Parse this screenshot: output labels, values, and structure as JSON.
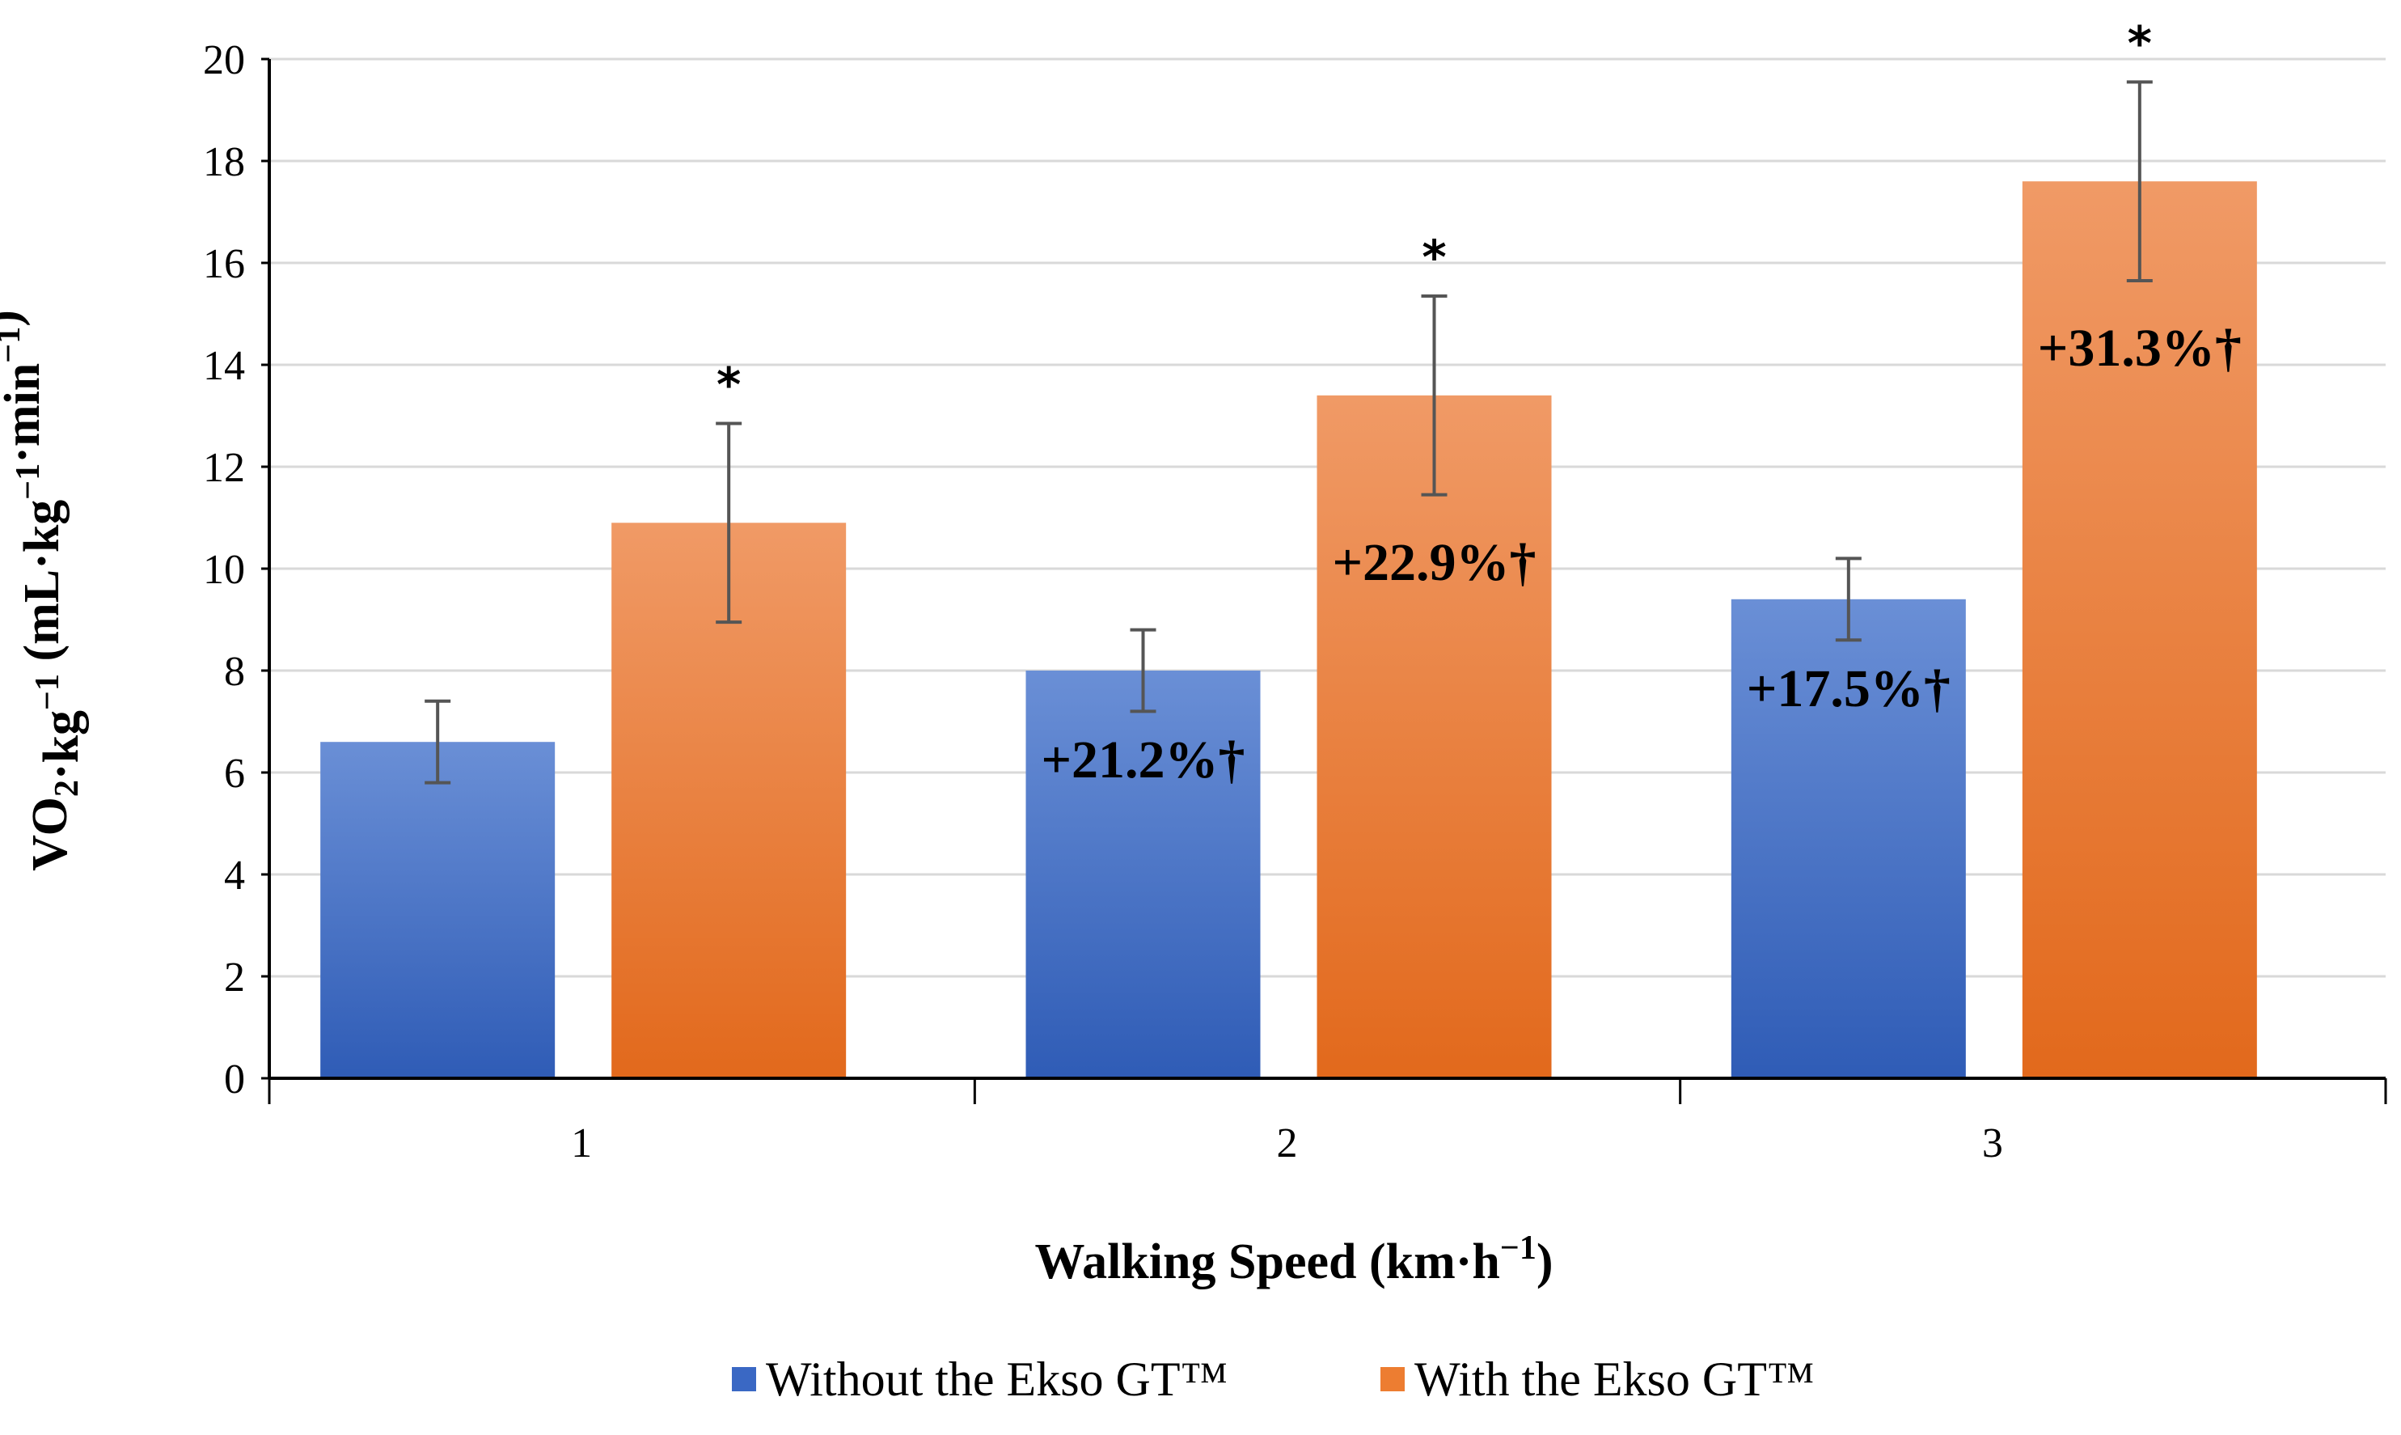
{
  "chart_data": {
    "type": "bar",
    "title": "",
    "xlabel": "Walking Speed (km·h",
    "xlabel_sup": "−1",
    "xlabel_tail": ")",
    "ylabel_parts": [
      {
        "text": "VO",
        "style": "normal"
      },
      {
        "text": "2",
        "style": "sub"
      },
      {
        "text": "·kg",
        "style": "normal"
      },
      {
        "text": "−1",
        "style": "sup"
      },
      {
        "text": " (mL·kg",
        "style": "normal"
      },
      {
        "text": "−1",
        "style": "sup"
      },
      {
        "text": "·min",
        "style": "normal"
      },
      {
        "text": "−1",
        "style": "sup"
      },
      {
        "text": ")",
        "style": "normal"
      }
    ],
    "categories": [
      "1",
      "2",
      "3"
    ],
    "ylim": [
      0,
      20
    ],
    "yticks": [
      0,
      2,
      4,
      6,
      8,
      10,
      12,
      14,
      16,
      18,
      20
    ],
    "ytick_labels": [
      "0",
      "2",
      "4",
      "6",
      "8",
      "10",
      "12",
      "14",
      "16",
      "18",
      "20"
    ],
    "grid": true,
    "legend_position": "bottom",
    "series": [
      {
        "name": "Without the Ekso GT™",
        "color_top": "#6a8fd6",
        "color_bottom": "#2f5cb6",
        "legend_color": "#3a68c4",
        "values": [
          6.6,
          8.0,
          9.4
        ],
        "error": [
          0.8,
          0.8,
          0.8
        ],
        "labels": [
          "",
          "+21.2%†",
          "+17.5%†"
        ],
        "stars": [
          "",
          "",
          ""
        ]
      },
      {
        "name": "With the Ekso GT™",
        "color_top": "#f09a66",
        "color_bottom": "#e2691c",
        "legend_color": "#ed7d31",
        "values": [
          10.9,
          13.4,
          17.6
        ],
        "error": [
          1.95,
          1.95,
          1.95
        ],
        "labels": [
          "",
          "+22.9%†",
          "+31.3%†"
        ],
        "stars": [
          "*",
          "*",
          "*"
        ]
      }
    ]
  }
}
